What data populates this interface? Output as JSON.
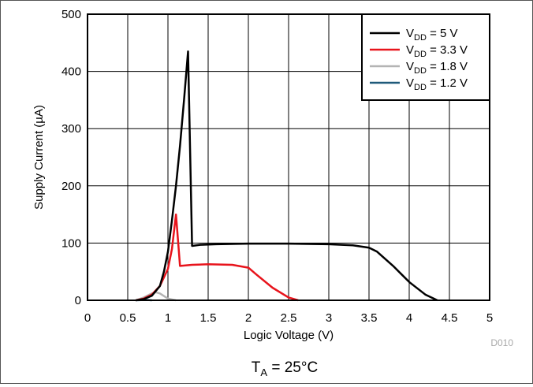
{
  "chart_data": {
    "type": "line",
    "xlabel": "Logic Voltage (V)",
    "ylabel": "Supply Current (µA)",
    "xlim": [
      0,
      5
    ],
    "ylim": [
      0,
      500
    ],
    "x_ticks": [
      "0",
      "0.5",
      "1",
      "1.5",
      "2",
      "2.5",
      "3",
      "3.5",
      "4",
      "4.5",
      "5"
    ],
    "y_ticks": [
      "0",
      "100",
      "200",
      "300",
      "400",
      "500"
    ],
    "grid": true,
    "legend_position": "top-right",
    "figure_id": "D010",
    "caption": {
      "main": "T",
      "sub": "A",
      "rest": " = 25°C"
    },
    "series": [
      {
        "legend": {
          "main": "V",
          "sub": "DD",
          "rest": " = 5 V"
        },
        "color": "#000000",
        "points": [
          [
            0.6,
            0
          ],
          [
            0.7,
            2
          ],
          [
            0.8,
            8
          ],
          [
            0.9,
            25
          ],
          [
            0.95,
            50
          ],
          [
            1.0,
            85
          ],
          [
            1.05,
            140
          ],
          [
            1.1,
            200
          ],
          [
            1.15,
            270
          ],
          [
            1.2,
            350
          ],
          [
            1.25,
            435
          ],
          [
            1.3,
            95
          ],
          [
            1.4,
            97
          ],
          [
            1.6,
            98
          ],
          [
            2.0,
            99
          ],
          [
            2.5,
            99
          ],
          [
            3.0,
            98
          ],
          [
            3.3,
            96
          ],
          [
            3.5,
            92
          ],
          [
            3.6,
            85
          ],
          [
            3.8,
            60
          ],
          [
            4.0,
            32
          ],
          [
            4.2,
            10
          ],
          [
            4.35,
            0
          ]
        ]
      },
      {
        "legend": {
          "main": "V",
          "sub": "DD",
          "rest": " = 3.3 V"
        },
        "color": "#e8141c",
        "points": [
          [
            0.6,
            0
          ],
          [
            0.7,
            3
          ],
          [
            0.8,
            10
          ],
          [
            0.9,
            25
          ],
          [
            1.0,
            55
          ],
          [
            1.05,
            90
          ],
          [
            1.1,
            150
          ],
          [
            1.15,
            60
          ],
          [
            1.3,
            62
          ],
          [
            1.5,
            63
          ],
          [
            1.8,
            62
          ],
          [
            2.0,
            57
          ],
          [
            2.1,
            45
          ],
          [
            2.3,
            22
          ],
          [
            2.5,
            5
          ],
          [
            2.62,
            0
          ]
        ]
      },
      {
        "legend": {
          "main": "V",
          "sub": "DD",
          "rest": " = 1.8 V"
        },
        "color": "#b4b4b4",
        "points": [
          [
            0.6,
            0
          ],
          [
            0.7,
            5
          ],
          [
            0.8,
            12
          ],
          [
            0.85,
            14
          ],
          [
            0.9,
            12
          ],
          [
            1.0,
            3
          ],
          [
            1.1,
            0
          ]
        ]
      },
      {
        "legend": {
          "main": "V",
          "sub": "DD",
          "rest": " = 1.2 V"
        },
        "color": "#1f5a7a",
        "points": [
          [
            0.6,
            0
          ],
          [
            0.7,
            0.5
          ],
          [
            0.75,
            0.5
          ],
          [
            0.8,
            0
          ]
        ]
      }
    ]
  }
}
